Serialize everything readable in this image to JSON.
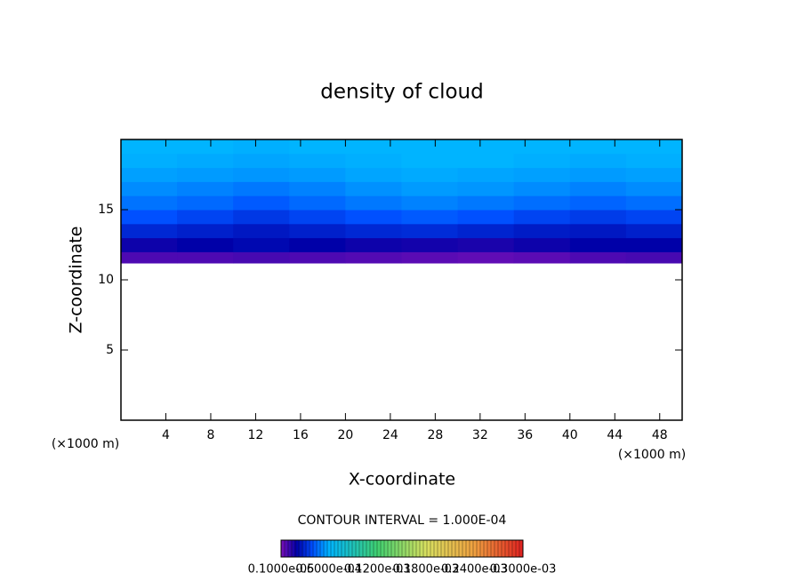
{
  "chart_data": {
    "type": "contour",
    "title": "density of cloud",
    "xlabel": "X-coordinate",
    "ylabel": "Z-coordinate",
    "x_unit": "(×1000 m)",
    "y_unit": "(×1000 m)",
    "note": "CONTOUR INTERVAL = 1.000E-04",
    "xlim": [
      0,
      50
    ],
    "ylim": [
      0,
      20
    ],
    "xticks": [
      4,
      8,
      12,
      16,
      20,
      24,
      28,
      32,
      36,
      40,
      44,
      48
    ],
    "yticks": [
      5,
      10,
      15
    ],
    "xbins": [
      0,
      5,
      10,
      15,
      20,
      25,
      30,
      35,
      40,
      45,
      50
    ],
    "zbins": [
      11.2,
      12,
      13,
      14,
      15,
      16,
      17,
      18,
      19,
      20
    ],
    "values": [
      [
        8e-06,
        8e-06,
        9e-06,
        8e-06,
        7e-06,
        6e-06,
        5e-06,
        6e-06,
        8e-06,
        9e-06
      ],
      [
        1.8e-05,
        2e-05,
        2.2e-05,
        2e-05,
        1.8e-05,
        1.7e-05,
        1.6e-05,
        1.8e-05,
        2e-05,
        2e-05
      ],
      [
        3e-05,
        2.8e-05,
        2.6e-05,
        2.8e-05,
        3e-05,
        3.1e-05,
        2.9e-05,
        2.7e-05,
        2.6e-05,
        2.8e-05
      ],
      [
        4e-05,
        3.7e-05,
        3.4e-05,
        3.7e-05,
        4e-05,
        4.2e-05,
        4e-05,
        3.7e-05,
        3.5e-05,
        3.7e-05
      ],
      [
        4.7e-05,
        4.5e-05,
        4.2e-05,
        4.5e-05,
        4.8e-05,
        5e-05,
        4.8e-05,
        4.6e-05,
        4.4e-05,
        4.6e-05
      ],
      [
        5.2e-05,
        5e-05,
        4.8e-05,
        5e-05,
        5.3e-05,
        5.5e-05,
        5.4e-05,
        5.2e-05,
        5e-05,
        5.2e-05
      ],
      [
        5.6e-05,
        5.5e-05,
        5.4e-05,
        5.5e-05,
        5.7e-05,
        5.8e-05,
        5.7e-05,
        5.6e-05,
        5.5e-05,
        5.6e-05
      ],
      [
        5.9e-05,
        5.8e-05,
        5.7e-05,
        5.8e-05,
        5.9e-05,
        6e-05,
        6e-05,
        5.9e-05,
        5.8e-05,
        5.9e-05
      ],
      [
        6e-05,
        6e-05,
        5.9e-05,
        6e-05,
        6e-05,
        6e-05,
        6e-05,
        6e-05,
        6e-05,
        6e-05
      ]
    ],
    "colorscale": [
      [
        1e-06,
        "#7a0fb8"
      ],
      [
        2e-05,
        "#0000a8"
      ],
      [
        4e-05,
        "#0050ff"
      ],
      [
        6e-05,
        "#00b4ff"
      ],
      [
        0.00012,
        "#40d070"
      ],
      [
        0.00018,
        "#d8e060"
      ],
      [
        0.00024,
        "#f0a040"
      ],
      [
        0.0003,
        "#e02020"
      ]
    ],
    "colorbar_ticks": [
      {
        "value": 1e-06,
        "label": "0.1000e-05"
      },
      {
        "value": 6e-05,
        "label": "0.6000e-04"
      },
      {
        "value": 0.00012,
        "label": "0.1200e-03"
      },
      {
        "value": 0.00018,
        "label": "0.1800e-03"
      },
      {
        "value": 0.00024,
        "label": "0.2400e-03"
      },
      {
        "value": 0.0003,
        "label": "0.3000e-03"
      }
    ]
  }
}
